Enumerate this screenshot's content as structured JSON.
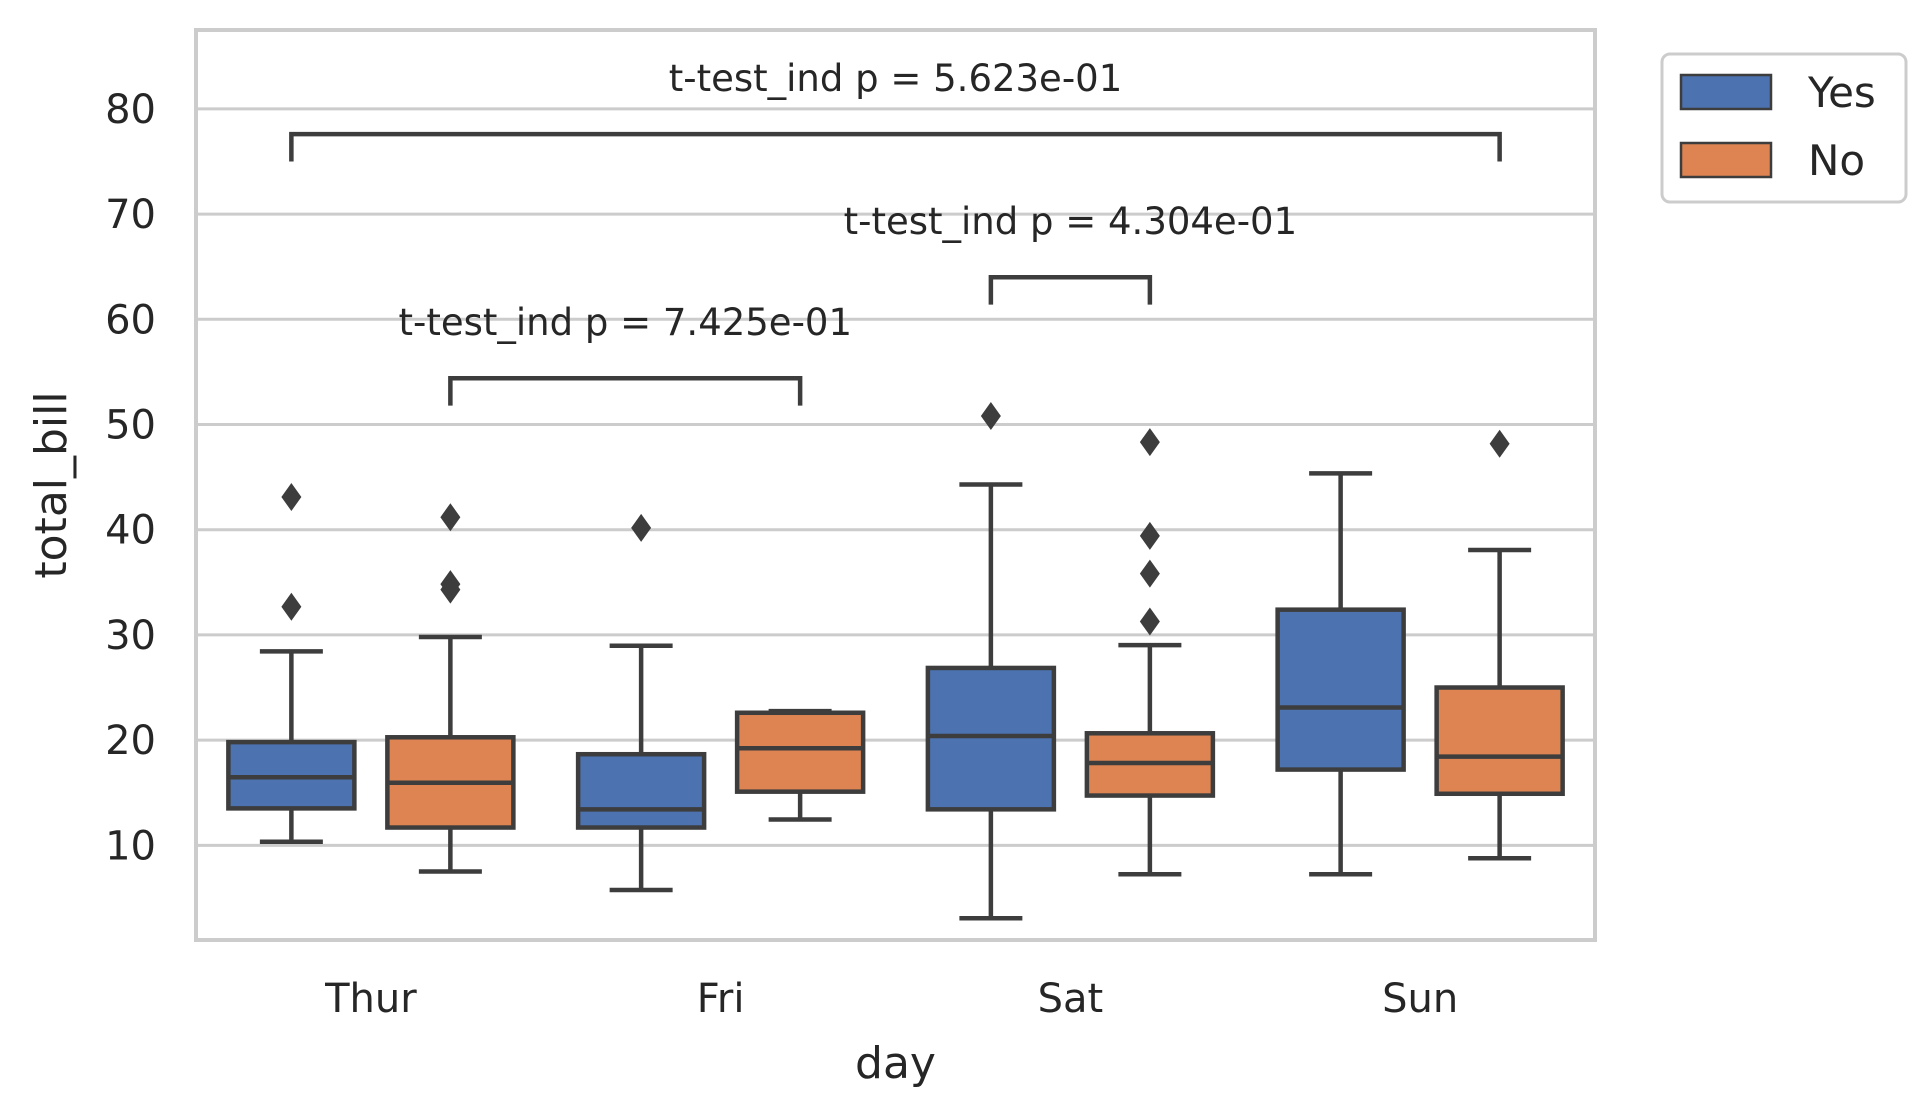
{
  "chart_data": {
    "type": "box",
    "xlabel": "day",
    "ylabel": "total_bill",
    "categories": [
      "Thur",
      "Fri",
      "Sat",
      "Sun"
    ],
    "ylim": [
      1.0,
      87.5
    ],
    "yticks": [
      10,
      20,
      30,
      40,
      50,
      60,
      70,
      80
    ],
    "grid": true,
    "legend_position": "outside-top-right",
    "colors": {
      "Yes": "#4c72b0",
      "No": "#dd8452",
      "line": "#3d3d3d",
      "grid": "#cccccc"
    },
    "series": [
      {
        "name": "Yes",
        "boxes": [
          {
            "category": "Thur",
            "whisker_low": 10.34,
            "q1": 13.51,
            "median": 16.47,
            "q3": 19.81,
            "whisker_high": 28.44,
            "outliers": [
              32.68,
              43.11
            ]
          },
          {
            "category": "Fri",
            "whisker_low": 5.75,
            "q1": 11.69,
            "median": 13.42,
            "q3": 18.66,
            "whisker_high": 28.97,
            "outliers": [
              40.17
            ]
          },
          {
            "category": "Sat",
            "whisker_low": 3.07,
            "q1": 13.42,
            "median": 20.39,
            "q3": 26.86,
            "whisker_high": 44.3,
            "outliers": [
              50.81
            ]
          },
          {
            "category": "Sun",
            "whisker_low": 7.25,
            "q1": 17.2,
            "median": 23.1,
            "q3": 32.4,
            "whisker_high": 45.35,
            "outliers": []
          }
        ]
      },
      {
        "name": "No",
        "boxes": [
          {
            "category": "Thur",
            "whisker_low": 7.51,
            "q1": 11.69,
            "median": 15.95,
            "q3": 20.27,
            "whisker_high": 29.8,
            "outliers": [
              34.3,
              34.83,
              41.19
            ]
          },
          {
            "category": "Fri",
            "whisker_low": 12.46,
            "q1": 15.1,
            "median": 19.23,
            "q3": 22.6,
            "whisker_high": 22.75,
            "outliers": []
          },
          {
            "category": "Sat",
            "whisker_low": 7.25,
            "q1": 14.73,
            "median": 17.82,
            "q3": 20.65,
            "whisker_high": 29.03,
            "outliers": [
              31.27,
              35.83,
              39.42,
              48.33
            ]
          },
          {
            "category": "Sun",
            "whisker_low": 8.77,
            "q1": 14.9,
            "median": 18.43,
            "q3": 25.0,
            "whisker_high": 38.07,
            "outliers": [
              48.17
            ]
          }
        ]
      }
    ],
    "annotations": [
      {
        "text": "t-test_ind p = 7.425e-01",
        "from": {
          "category": "Thur",
          "series": "No"
        },
        "to": {
          "category": "Fri",
          "series": "No"
        },
        "y_low": 51.8,
        "y_top": 54.4
      },
      {
        "text": "t-test_ind p = 4.304e-01",
        "from": {
          "category": "Sat",
          "series": "Yes"
        },
        "to": {
          "category": "Sat",
          "series": "No"
        },
        "y_low": 61.4,
        "y_top": 64.0
      },
      {
        "text": "t-test_ind p = 5.623e-01",
        "from": {
          "category": "Thur",
          "series": "Yes"
        },
        "to": {
          "category": "Sun",
          "series": "No"
        },
        "y_low": 75.0,
        "y_top": 77.6
      }
    ]
  }
}
